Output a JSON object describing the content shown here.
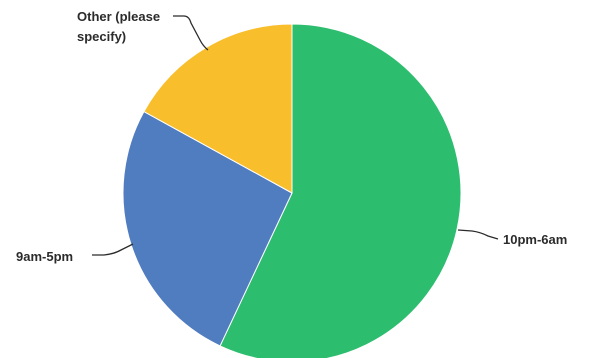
{
  "chart_data": {
    "type": "pie",
    "title": "",
    "slices": [
      {
        "label": "10pm-6am",
        "value": 57,
        "color": "#2dbd6e"
      },
      {
        "label": "9am-5pm",
        "value": 26,
        "color": "#507cc0"
      },
      {
        "label": "Other (please specify)",
        "label_lines": [
          "Other (please",
          "specify)"
        ],
        "value": 17,
        "color": "#f9be2c"
      }
    ],
    "start_angle": "12 o'clock",
    "direction": "clockwise",
    "legend": "none (direct labels with leader lines)"
  }
}
